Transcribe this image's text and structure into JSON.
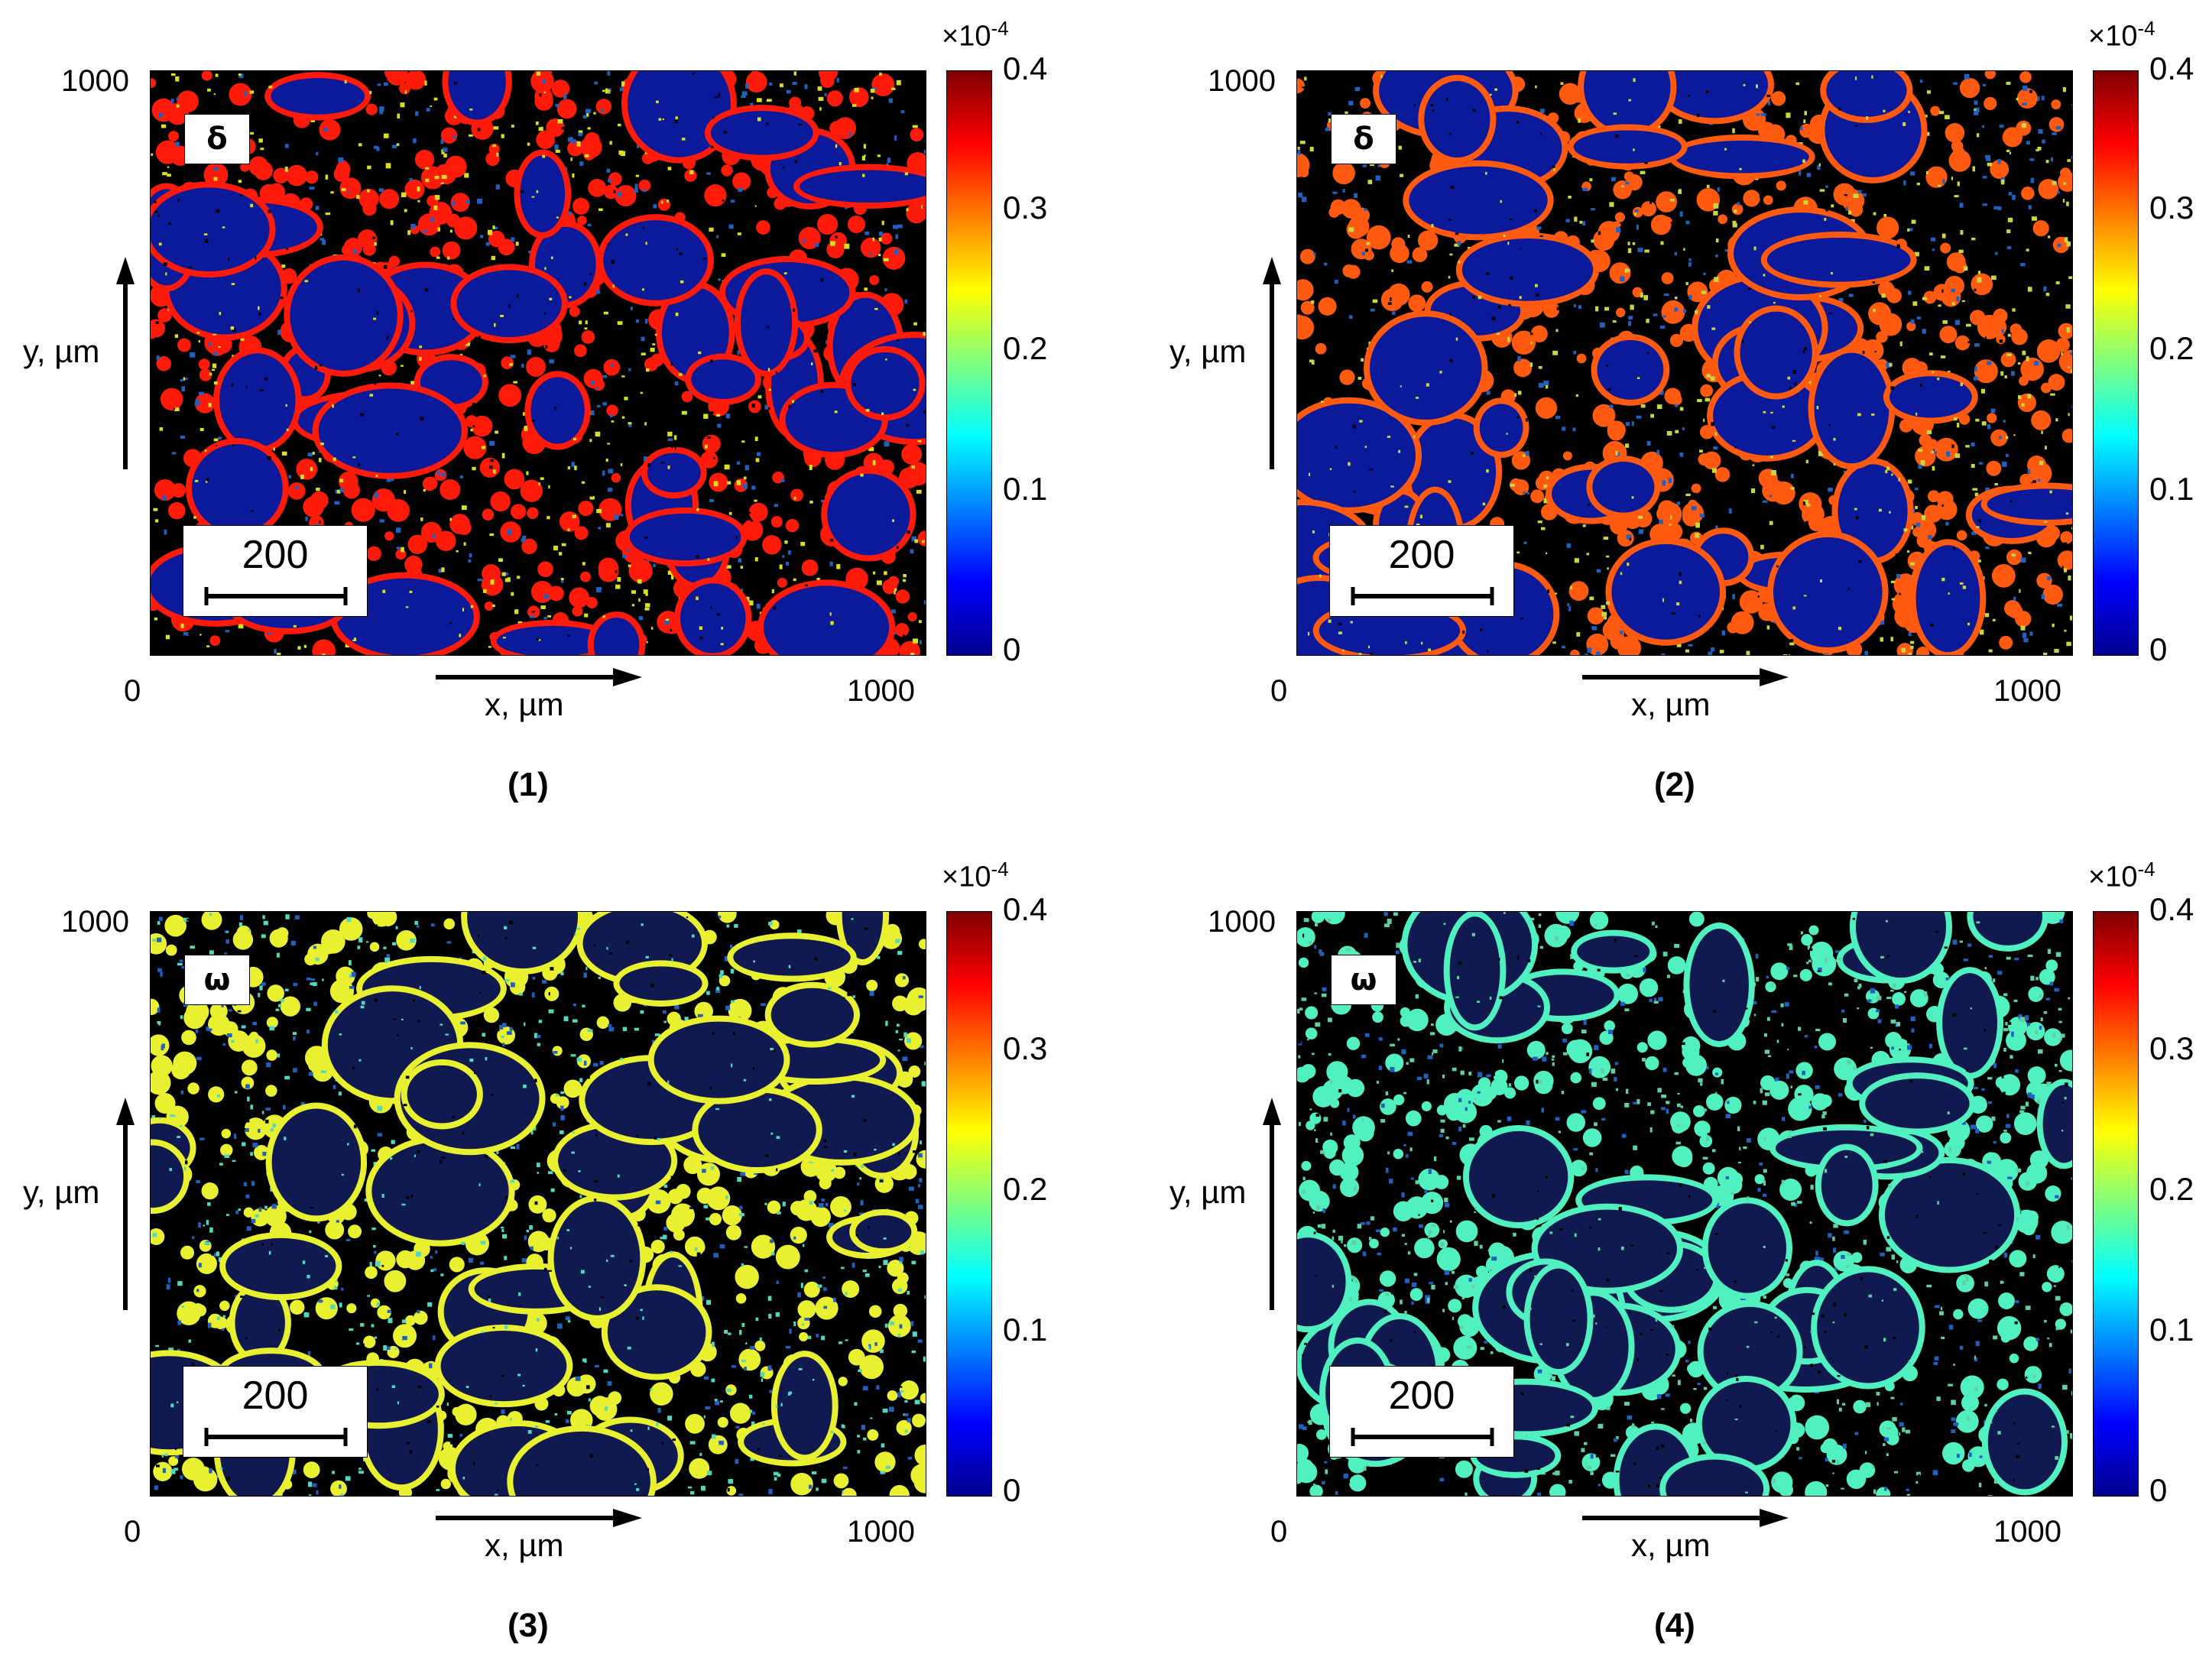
{
  "chart_data": [
    {
      "type": "heatmap",
      "panel_label": "(1)",
      "symbol": "δ",
      "xlabel": "x, µm",
      "ylabel": "y, µm",
      "x_ticks": [
        "0",
        "1000"
      ],
      "y_ticks": [
        "1000"
      ],
      "xlim": [
        0,
        1000
      ],
      "ylim": [
        0,
        1000
      ],
      "scale_bar": "200",
      "colorbar": {
        "multiplier": "×10",
        "exponent": "-4",
        "ticks": [
          "0.4",
          "0.3",
          "0.2",
          "0.1",
          "0"
        ],
        "range": [
          0,
          0.4
        ]
      },
      "texture": {
        "background": "#0a1a9a",
        "network": "#ff1a0a",
        "speckle": "#d8e020",
        "seed": 11
      }
    },
    {
      "type": "heatmap",
      "panel_label": "(2)",
      "symbol": "δ",
      "xlabel": "x, µm",
      "ylabel": "y, µm",
      "x_ticks": [
        "0",
        "1000"
      ],
      "y_ticks": [
        "1000"
      ],
      "xlim": [
        0,
        1000
      ],
      "ylim": [
        0,
        1000
      ],
      "scale_bar": "200",
      "colorbar": {
        "multiplier": "×10",
        "exponent": "-4",
        "ticks": [
          "0.4",
          "0.3",
          "0.2",
          "0.1",
          "0"
        ],
        "range": [
          0,
          0.4
        ]
      },
      "texture": {
        "background": "#0a1a9a",
        "network": "#ff5a10",
        "speckle": "#c8d840",
        "seed": 23
      }
    },
    {
      "type": "heatmap",
      "panel_label": "(3)",
      "symbol": "ω",
      "xlabel": "x, µm",
      "ylabel": "y, µm",
      "x_ticks": [
        "0",
        "1000"
      ],
      "y_ticks": [
        "1000"
      ],
      "xlim": [
        0,
        1000
      ],
      "ylim": [
        0,
        1000
      ],
      "scale_bar": "200",
      "colorbar": {
        "multiplier": "×10",
        "exponent": "-4",
        "ticks": [
          "0.4",
          "0.3",
          "0.2",
          "0.1",
          "0"
        ],
        "range": [
          0,
          0.4
        ]
      },
      "texture": {
        "background": "#101a50",
        "network": "#e8f030",
        "speckle": "#50d8c0",
        "seed": 37
      }
    },
    {
      "type": "heatmap",
      "panel_label": "(4)",
      "symbol": "ω",
      "xlabel": "x, µm",
      "ylabel": "y, µm",
      "x_ticks": [
        "0",
        "1000"
      ],
      "y_ticks": [
        "1000"
      ],
      "xlim": [
        0,
        1000
      ],
      "ylim": [
        0,
        1000
      ],
      "scale_bar": "200",
      "colorbar": {
        "multiplier": "×10",
        "exponent": "-4",
        "ticks": [
          "0.4",
          "0.3",
          "0.2",
          "0.1",
          "0"
        ],
        "range": [
          0,
          0.4
        ]
      },
      "texture": {
        "background": "#101a50",
        "network": "#50f0c0",
        "speckle": "#60d0a0",
        "seed": 53
      }
    }
  ]
}
